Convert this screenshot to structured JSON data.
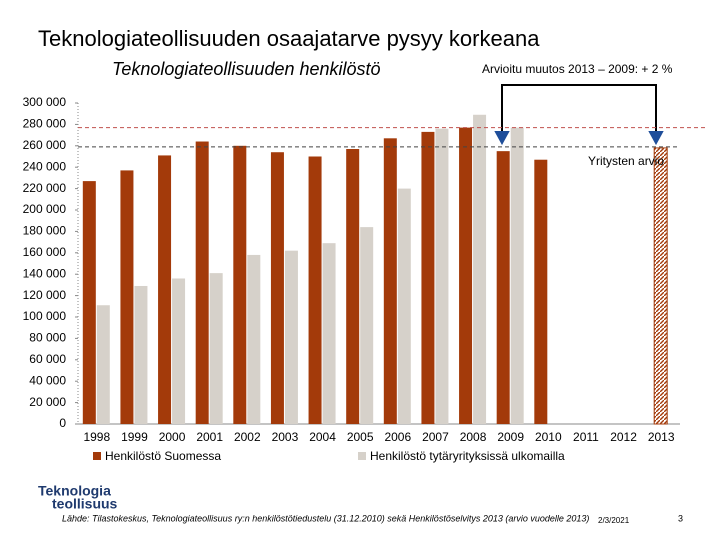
{
  "chart_data": {
    "type": "bar",
    "title": "Teknologiateollisuuden osaajatarve pysyy korkeana",
    "subtitle": "Teknologiateollisuuden henkilöstö",
    "change_note": "Arvioitu muutos 2013 – 2009: + 2 %",
    "categories": [
      "1998",
      "1999",
      "2000",
      "2001",
      "2002",
      "2003",
      "2004",
      "2005",
      "2006",
      "2007",
      "2008",
      "2009",
      "2010",
      "2011",
      "2012",
      "2013"
    ],
    "series": [
      {
        "name": "Henkilöstö Suomessa",
        "color": "#a33a0a",
        "values": [
          227000,
          237000,
          251000,
          264000,
          260000,
          254000,
          250000,
          257000,
          267000,
          273000,
          277000,
          255000,
          247000,
          null,
          null,
          null
        ]
      },
      {
        "name": "Henkilöstö tytäryrityksissä ulkomailla",
        "color": "#d6d1ca",
        "values": [
          111000,
          129000,
          136000,
          141000,
          158000,
          162000,
          169000,
          184000,
          220000,
          276000,
          289000,
          277000,
          null,
          null,
          null,
          null
        ]
      }
    ],
    "estimate": {
      "label": "Yritysten arvio",
      "category": "2013",
      "value": 258000,
      "color": "#a33a0a"
    },
    "reference_lines": [
      {
        "value": 277000,
        "color": "#c0504d"
      },
      {
        "value": 259000,
        "color": "#444444"
      }
    ],
    "ylim": [
      0,
      300000
    ],
    "yticks": [
      0,
      {
        "value": 20000,
        "label": "20 000"
      },
      {
        "value": 40000,
        "label": "40 000"
      },
      {
        "value": 60000,
        "label": "60 000"
      },
      {
        "value": 80000,
        "label": "80 000"
      },
      {
        "value": 100000,
        "label": "100 000"
      },
      {
        "value": 120000,
        "label": "120 000"
      },
      {
        "value": 140000,
        "label": "140 000"
      },
      {
        "value": 160000,
        "label": "160 000"
      },
      {
        "value": 180000,
        "label": "180 000"
      },
      {
        "value": 200000,
        "label": "200 000"
      },
      {
        "value": 220000,
        "label": "220 000"
      },
      {
        "value": 240000,
        "label": "240 000"
      },
      {
        "value": 260000,
        "label": "260 000"
      },
      {
        "value": 280000,
        "label": "280 000"
      },
      {
        "value": 300000,
        "label": "300 000"
      }
    ],
    "grid": false,
    "legend": "bottom",
    "logo": [
      "Teknologia",
      "teollisuus"
    ],
    "source": "Lähde: Tilastokeskus, Teknologiateollisuus ry:n henkilöstötiedustelu (31.12.2010) sekä Henkilöstöselvitys 2013 (arvio vuodelle 2013)",
    "date": "2/3/2021",
    "page_number": "3"
  }
}
